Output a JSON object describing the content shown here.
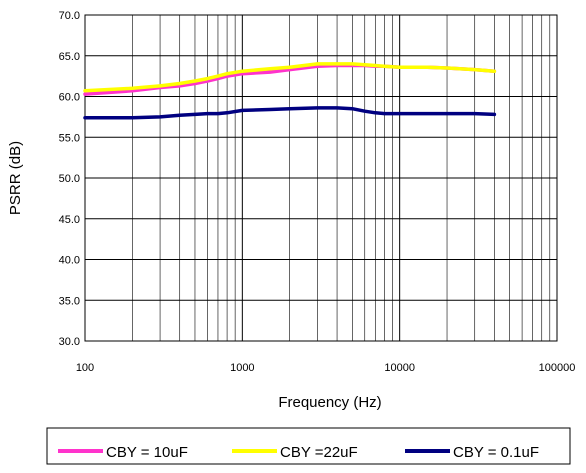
{
  "chart_data": {
    "type": "line",
    "title": "",
    "xlabel": "Frequency (Hz)",
    "ylabel": "PSRR (dB)",
    "xscale": "log",
    "xlim": [
      100,
      100000
    ],
    "ylim": [
      30,
      70
    ],
    "x_ticks": [
      "100",
      "1000",
      "10000",
      "100000"
    ],
    "y_ticks": [
      "30.0",
      "35.0",
      "40.0",
      "45.0",
      "50.0",
      "55.0",
      "60.0",
      "65.0",
      "70.0"
    ],
    "grid": true,
    "legend_position": "bottom",
    "series": [
      {
        "name": "CBY = 10uF",
        "color": "#ff33cc",
        "x": [
          100,
          200,
          300,
          400,
          500,
          600,
          700,
          800,
          1000,
          1500,
          2000,
          3000,
          4000,
          5000,
          6000,
          7000,
          8000,
          10000,
          15000,
          20000,
          30000,
          40000
        ],
        "y": [
          60.3,
          60.7,
          61.1,
          61.3,
          61.6,
          61.9,
          62.2,
          62.5,
          62.8,
          63.0,
          63.3,
          63.7,
          63.8,
          63.8,
          63.8,
          63.7,
          63.7,
          63.6,
          63.6,
          63.5,
          63.3,
          63.1
        ]
      },
      {
        "name": "CBY =22uF",
        "color": "#ffff00",
        "x": [
          100,
          200,
          300,
          400,
          500,
          600,
          700,
          800,
          1000,
          1500,
          2000,
          3000,
          4000,
          5000,
          6000,
          7000,
          8000,
          10000,
          15000,
          20000,
          30000,
          40000
        ],
        "y": [
          60.7,
          61.0,
          61.3,
          61.6,
          61.9,
          62.2,
          62.5,
          62.8,
          63.1,
          63.4,
          63.6,
          64.0,
          64.0,
          64.0,
          63.9,
          63.8,
          63.7,
          63.6,
          63.6,
          63.5,
          63.3,
          63.1
        ]
      },
      {
        "name": "CBY = 0.1uF",
        "color": "#000080",
        "x": [
          100,
          200,
          300,
          400,
          500,
          600,
          700,
          800,
          1000,
          1500,
          2000,
          3000,
          4000,
          5000,
          6000,
          7000,
          8000,
          10000,
          15000,
          20000,
          30000,
          40000
        ],
        "y": [
          57.4,
          57.4,
          57.5,
          57.7,
          57.8,
          57.9,
          57.9,
          58.0,
          58.3,
          58.4,
          58.5,
          58.6,
          58.6,
          58.5,
          58.2,
          58.0,
          57.9,
          57.9,
          57.9,
          57.9,
          57.9,
          57.8
        ]
      }
    ]
  }
}
